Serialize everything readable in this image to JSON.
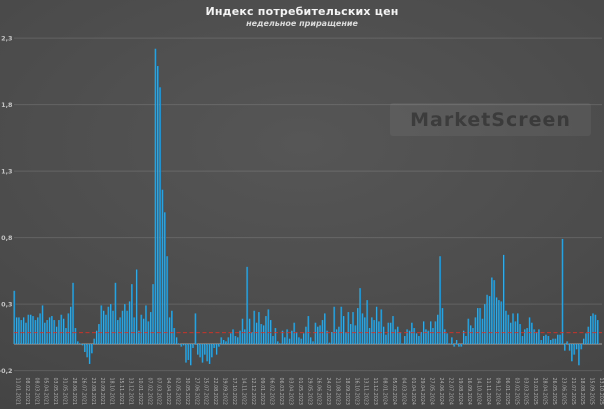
{
  "header": {
    "title": "Индекс потребительских цен",
    "subtitle": "недельное приращение"
  },
  "watermark": {
    "label": "MarketScreen"
  },
  "chart_data": {
    "type": "bar",
    "title": "Индекс потребительских цен",
    "subtitle": "недельное приращение",
    "xlabel": "",
    "ylabel": "",
    "ylim": [
      -0.2,
      2.3
    ],
    "grid": true,
    "legend": "none",
    "yticks": [
      2.3,
      1.8,
      1.3,
      0.8,
      0.3,
      -0.2
    ],
    "ytick_labels": [
      "2,3",
      "1,8",
      "1,3",
      "0,8",
      "0,3",
      "-0,2"
    ],
    "average_line_value": 0.085,
    "label_every": 4,
    "x_labels": [
      "11.01.2021",
      "08.02.2021",
      "08.03.2021",
      "05.04.2021",
      "03.05.2021",
      "31.05.2021",
      "28.06.2021",
      "26.07.2021",
      "23.08.2021",
      "20.09.2021",
      "18.10.2021",
      "15.11.2021",
      "13.12.2021",
      "10.01.2022",
      "07.02.2022",
      "07.03.2022",
      "04.04.2022",
      "02.05.2022",
      "30.05.2022",
      "27.06.2022",
      "25.07.2022",
      "22.08.2022",
      "19.09.2022",
      "17.10.2022",
      "14.11.2022",
      "12.12.2022",
      "09.01.2023",
      "06.02.2023",
      "06.03.2023",
      "03.04.2023",
      "01.05.2023",
      "29.05.2023",
      "26.06.2023",
      "24.07.2023",
      "21.08.2023",
      "18.09.2023",
      "16.10.2023",
      "13.11.2023",
      "11.12.2023",
      "08.01.2024",
      "05.02.2024",
      "04.03.2024",
      "01.04.2024",
      "29.04.2024",
      "27.05.2024",
      "24.06.2024",
      "22.07.2024",
      "19.08.2024",
      "16.09.2024",
      "14.10.2024",
      "11.11.2024",
      "09.12.2024",
      "06.01.2025",
      "03.02.2025",
      "03.03.2025",
      "31.03.2025",
      "28.04.2025",
      "26.05.2025",
      "23.06.2025",
      "21.07.2025",
      "18.08.2025",
      "15.09.2025",
      "13.10.2025"
    ],
    "values": [
      0.4,
      0.2,
      0.2,
      0.18,
      0.2,
      0.16,
      0.22,
      0.22,
      0.21,
      0.18,
      0.2,
      0.23,
      0.29,
      0.16,
      0.18,
      0.2,
      0.21,
      0.18,
      0.13,
      0.18,
      0.22,
      0.19,
      0.12,
      0.23,
      0.28,
      0.46,
      0.12,
      0.02,
      0.0,
      -0.01,
      -0.06,
      -0.1,
      -0.15,
      -0.07,
      0.04,
      0.1,
      0.15,
      0.29,
      0.25,
      0.22,
      0.28,
      0.3,
      0.25,
      0.46,
      0.18,
      0.2,
      0.25,
      0.3,
      0.25,
      0.32,
      0.45,
      0.2,
      0.56,
      0.1,
      0.22,
      0.19,
      0.29,
      0.17,
      0.24,
      0.45,
      2.22,
      2.09,
      1.93,
      1.16,
      0.99,
      0.66,
      0.2,
      0.25,
      0.12,
      0.05,
      0.0,
      -0.02,
      -0.01,
      -0.14,
      -0.12,
      -0.16,
      -0.03,
      0.23,
      -0.08,
      -0.1,
      -0.14,
      -0.08,
      -0.13,
      -0.15,
      -0.1,
      -0.03,
      -0.08,
      -0.02,
      0.05,
      0.03,
      0.02,
      0.05,
      0.08,
      0.11,
      0.06,
      0.05,
      0.1,
      0.19,
      0.11,
      0.58,
      0.19,
      0.09,
      0.25,
      0.16,
      0.24,
      0.15,
      0.14,
      0.21,
      0.26,
      0.18,
      0.06,
      0.12,
      0.02,
      0.0,
      0.1,
      0.05,
      0.11,
      0.04,
      0.1,
      0.16,
      0.09,
      0.05,
      0.04,
      0.08,
      0.13,
      0.21,
      0.05,
      0.02,
      0.16,
      0.13,
      0.14,
      0.18,
      0.23,
      0.1,
      0.01,
      0.09,
      0.28,
      0.11,
      0.13,
      0.28,
      0.21,
      0.09,
      0.24,
      0.15,
      0.24,
      0.14,
      0.27,
      0.42,
      0.23,
      0.2,
      0.33,
      0.12,
      0.2,
      0.18,
      0.28,
      0.17,
      0.26,
      0.13,
      0.07,
      0.16,
      0.16,
      0.21,
      0.11,
      0.13,
      0.09,
      0.0,
      0.06,
      0.11,
      0.1,
      0.16,
      0.12,
      0.08,
      0.06,
      0.09,
      0.17,
      0.11,
      0.1,
      0.17,
      0.12,
      0.17,
      0.22,
      0.66,
      0.27,
      0.11,
      0.08,
      0.0,
      0.05,
      -0.02,
      0.03,
      -0.02,
      -0.02,
      0.1,
      0.06,
      0.19,
      0.14,
      0.12,
      0.2,
      0.27,
      0.27,
      0.19,
      0.3,
      0.37,
      0.36,
      0.5,
      0.48,
      0.35,
      0.33,
      0.32,
      0.67,
      0.25,
      0.22,
      0.16,
      0.23,
      0.17,
      0.23,
      0.15,
      0.06,
      0.11,
      0.12,
      0.2,
      0.16,
      0.11,
      0.09,
      0.11,
      0.03,
      0.06,
      0.07,
      0.06,
      0.03,
      0.04,
      0.04,
      0.07,
      0.07,
      0.79,
      -0.05,
      0.02,
      -0.05,
      -0.13,
      -0.08,
      -0.04,
      -0.16,
      -0.04,
      0.04,
      0.08,
      0.13,
      0.21,
      0.23,
      0.22,
      0.18
    ],
    "colors": {
      "bar_light": "#5ecdf5",
      "bar_mid": "#1e96d2",
      "bar_dark": "#0c5f96",
      "average_line": "#d93025",
      "grid": "rgba(255,255,255,0.13)",
      "zero_axis": "rgba(255,255,255,0.50)",
      "tick_text": "#c4c4c4",
      "background": "#4b4b4b"
    }
  }
}
